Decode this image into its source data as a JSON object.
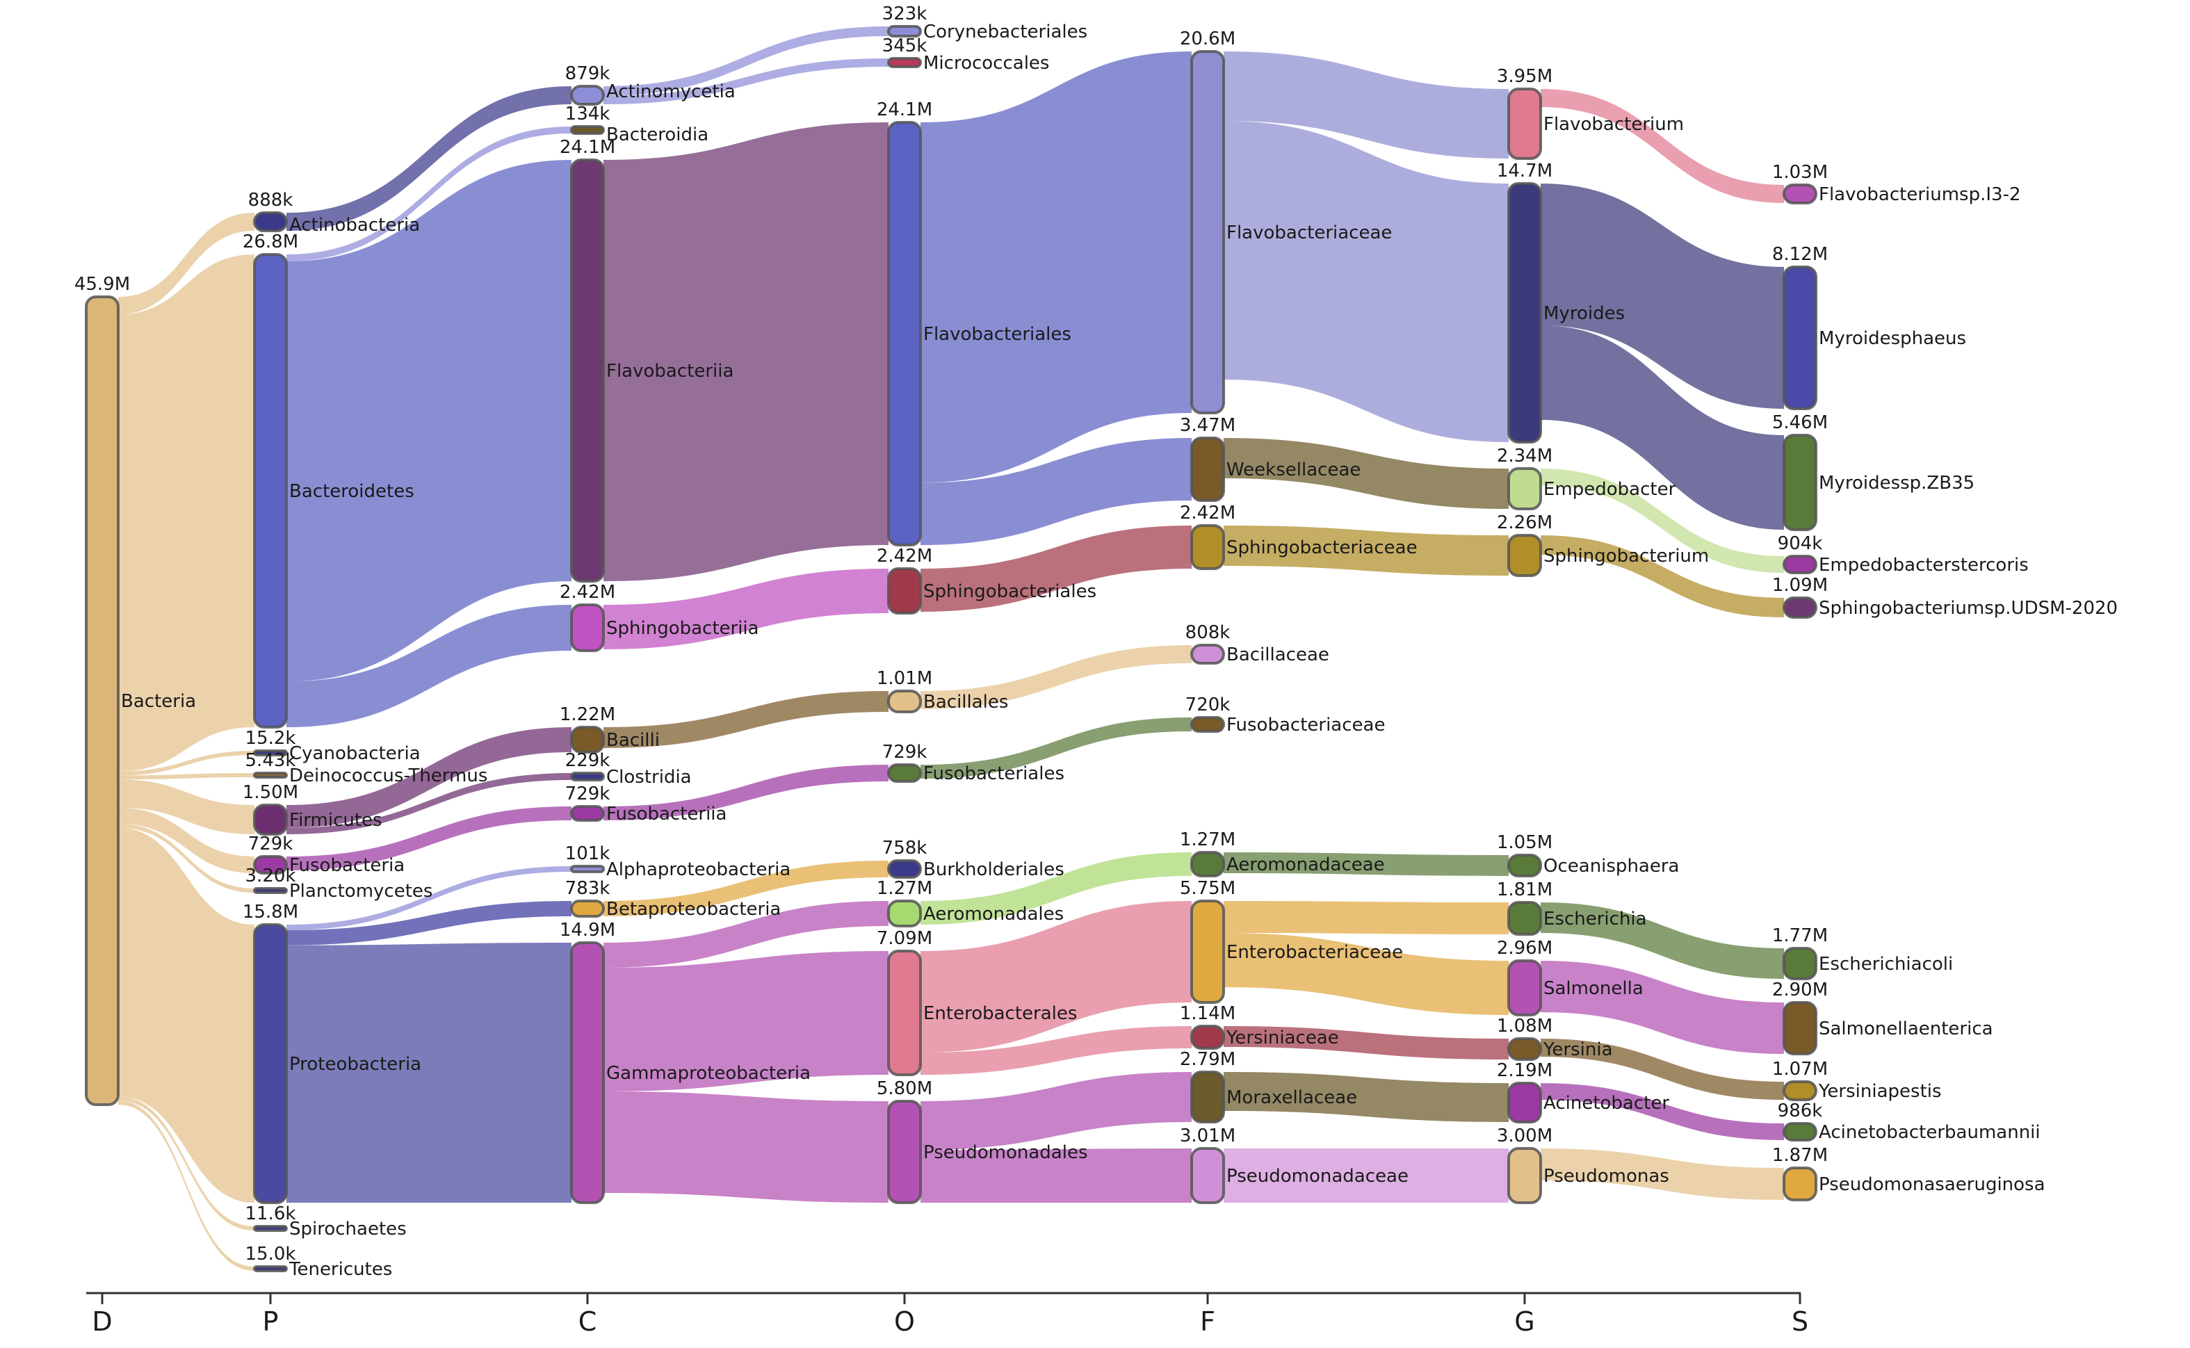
{
  "ranks": [
    {
      "id": "D",
      "label": "D"
    },
    {
      "id": "P",
      "label": "P"
    },
    {
      "id": "C",
      "label": "C"
    },
    {
      "id": "O",
      "label": "O"
    },
    {
      "id": "F",
      "label": "F"
    },
    {
      "id": "G",
      "label": "G"
    },
    {
      "id": "S",
      "label": "S"
    }
  ],
  "nodes": [
    {
      "id": "bacteria",
      "name": "Bacteria",
      "value_label": "45.9M",
      "rank": "D",
      "color": "#dbb678"
    },
    {
      "id": "actinobacteria",
      "name": "Actinobacteria",
      "value_label": "888k",
      "rank": "P",
      "color": "#3b3a8a"
    },
    {
      "id": "bacteroidetes",
      "name": "Bacteroidetes",
      "value_label": "26.8M",
      "rank": "P",
      "color": "#5b62c2"
    },
    {
      "id": "cyanobacteria",
      "name": "Cyanobacteria",
      "value_label": "15.2k",
      "rank": "P",
      "color": "#3b3a8a"
    },
    {
      "id": "deinococcus",
      "name": "Deinococcus-Thermus",
      "value_label": "5.43k",
      "rank": "P",
      "color": "#8a6a3a"
    },
    {
      "id": "firmicutes",
      "name": "Firmicutes",
      "value_label": "1.50M",
      "rank": "P",
      "color": "#6b2e6e"
    },
    {
      "id": "fusobacteria_p",
      "name": "Fusobacteria",
      "value_label": "729k",
      "rank": "P",
      "color": "#9b3aa2"
    },
    {
      "id": "planctomycetes",
      "name": "Planctomycetes",
      "value_label": "3.20k",
      "rank": "P",
      "color": "#3b3a8a"
    },
    {
      "id": "proteobacteria",
      "name": "Proteobacteria",
      "value_label": "15.8M",
      "rank": "P",
      "color": "#4a4aa0"
    },
    {
      "id": "spirochaetes",
      "name": "Spirochaetes",
      "value_label": "11.6k",
      "rank": "P",
      "color": "#3b3a8a"
    },
    {
      "id": "tenericutes",
      "name": "Tenericutes",
      "value_label": "15.0k",
      "rank": "P",
      "color": "#3b3a8a"
    },
    {
      "id": "actinomycetia",
      "name": "Actinomycetia",
      "value_label": "879k",
      "rank": "C",
      "color": "#8e8ed8"
    },
    {
      "id": "bacteroidia",
      "name": "Bacteroidia",
      "value_label": "134k",
      "rank": "C",
      "color": "#6b5a2a"
    },
    {
      "id": "flavobacteriia",
      "name": "Flavobacteriia",
      "value_label": "24.1M",
      "rank": "C",
      "color": "#6e3872"
    },
    {
      "id": "sphingobacteriia",
      "name": "Sphingobacteriia",
      "value_label": "2.42M",
      "rank": "C",
      "color": "#c152c1"
    },
    {
      "id": "bacilli",
      "name": "Bacilli",
      "value_label": "1.22M",
      "rank": "C",
      "color": "#7a5a28"
    },
    {
      "id": "clostridia",
      "name": "Clostridia",
      "value_label": "229k",
      "rank": "C",
      "color": "#3b3a8a"
    },
    {
      "id": "fusobacteriia",
      "name": "Fusobacteriia",
      "value_label": "729k",
      "rank": "C",
      "color": "#9b3aa2"
    },
    {
      "id": "alphaproteobacteria",
      "name": "Alphaproteobacteria",
      "value_label": "101k",
      "rank": "C",
      "color": "#8e8ed8"
    },
    {
      "id": "betaproteobacteria",
      "name": "Betaproteobacteria",
      "value_label": "783k",
      "rank": "C",
      "color": "#e0a840"
    },
    {
      "id": "gammaproteobacteria",
      "name": "Gammaproteobacteria",
      "value_label": "14.9M",
      "rank": "C",
      "color": "#b352b3"
    },
    {
      "id": "corynebacteriales",
      "name": "Corynebacteriales",
      "value_label": "323k",
      "rank": "O",
      "color": "#8e8ed8"
    },
    {
      "id": "micrococcales",
      "name": "Micrococcales",
      "value_label": "345k",
      "rank": "O",
      "color": "#b83a5a"
    },
    {
      "id": "flavobacteriales",
      "name": "Flavobacteriales",
      "value_label": "24.1M",
      "rank": "O",
      "color": "#5b62c2"
    },
    {
      "id": "sphingobacteriales",
      "name": "Sphingobacteriales",
      "value_label": "2.42M",
      "rank": "O",
      "color": "#a03a4a"
    },
    {
      "id": "bacillales",
      "name": "Bacillales",
      "value_label": "1.01M",
      "rank": "O",
      "color": "#e3c08a"
    },
    {
      "id": "fusobacteriales",
      "name": "Fusobacteriales",
      "value_label": "729k",
      "rank": "O",
      "color": "#5a7a3a"
    },
    {
      "id": "burkholderiales",
      "name": "Burkholderiales",
      "value_label": "758k",
      "rank": "O",
      "color": "#3b3a8a"
    },
    {
      "id": "aeromonadales",
      "name": "Aeromonadales",
      "value_label": "1.27M",
      "rank": "O",
      "color": "#a8d870"
    },
    {
      "id": "enterobacterales",
      "name": "Enterobacterales",
      "value_label": "7.09M",
      "rank": "O",
      "color": "#e07a90"
    },
    {
      "id": "pseudomonadales",
      "name": "Pseudomonadales",
      "value_label": "5.80M",
      "rank": "O",
      "color": "#b352b3"
    },
    {
      "id": "flavobacteriaceae",
      "name": "Flavobacteriaceae",
      "value_label": "20.6M",
      "rank": "F",
      "color": "#8e8ed0"
    },
    {
      "id": "weeksellaceae",
      "name": "Weeksellaceae",
      "value_label": "3.47M",
      "rank": "F",
      "color": "#7a5a28"
    },
    {
      "id": "sphingobacteriaceae",
      "name": "Sphingobacteriaceae",
      "value_label": "2.42M",
      "rank": "F",
      "color": "#b08e28"
    },
    {
      "id": "bacillaceae",
      "name": "Bacillaceae",
      "value_label": "808k",
      "rank": "F",
      "color": "#d090d8"
    },
    {
      "id": "fusobacteriaceae",
      "name": "Fusobacteriaceae",
      "value_label": "720k",
      "rank": "F",
      "color": "#7a5a28"
    },
    {
      "id": "aeromonadaceae",
      "name": "Aeromonadaceae",
      "value_label": "1.27M",
      "rank": "F",
      "color": "#5a7a3a"
    },
    {
      "id": "enterobacteriaceae",
      "name": "Enterobacteriaceae",
      "value_label": "5.75M",
      "rank": "F",
      "color": "#e0a840"
    },
    {
      "id": "yersiniaceae",
      "name": "Yersiniaceae",
      "value_label": "1.14M",
      "rank": "F",
      "color": "#a03a4a"
    },
    {
      "id": "moraxellaceae",
      "name": "Moraxellaceae",
      "value_label": "2.79M",
      "rank": "F",
      "color": "#6b5a2a"
    },
    {
      "id": "pseudomonadaceae",
      "name": "Pseudomonadaceae",
      "value_label": "3.01M",
      "rank": "F",
      "color": "#d090d8"
    },
    {
      "id": "flavobacterium",
      "name": "Flavobacterium",
      "value_label": "3.95M",
      "rank": "G",
      "color": "#e07a90"
    },
    {
      "id": "myroides",
      "name": "Myroides",
      "value_label": "14.7M",
      "rank": "G",
      "color": "#3b3a7a"
    },
    {
      "id": "empedobacter",
      "name": "Empedobacter",
      "value_label": "2.34M",
      "rank": "G",
      "color": "#c0dc90"
    },
    {
      "id": "sphingobacterium",
      "name": "Sphingobacterium",
      "value_label": "2.26M",
      "rank": "G",
      "color": "#b08e28"
    },
    {
      "id": "oceanisphaera",
      "name": "Oceanisphaera",
      "value_label": "1.05M",
      "rank": "G",
      "color": "#5a7a3a"
    },
    {
      "id": "escherichia",
      "name": "Escherichia",
      "value_label": "1.81M",
      "rank": "G",
      "color": "#5a7a3a"
    },
    {
      "id": "salmonella",
      "name": "Salmonella",
      "value_label": "2.96M",
      "rank": "G",
      "color": "#b352b3"
    },
    {
      "id": "yersinia",
      "name": "Yersinia",
      "value_label": "1.08M",
      "rank": "G",
      "color": "#7a5a28"
    },
    {
      "id": "acinetobacter",
      "name": "Acinetobacter",
      "value_label": "2.19M",
      "rank": "G",
      "color": "#9b3aa2"
    },
    {
      "id": "pseudomonas",
      "name": "Pseudomonas",
      "value_label": "3.00M",
      "rank": "G",
      "color": "#e3c08a"
    },
    {
      "id": "flavobacterium_sp",
      "name": "Flavobacteriumsp.I3-2",
      "value_label": "1.03M",
      "rank": "S",
      "color": "#b352b3"
    },
    {
      "id": "myroides_phaeus",
      "name": "Myroidesphaeus",
      "value_label": "8.12M",
      "rank": "S",
      "color": "#4a4aa8"
    },
    {
      "id": "myroides_zb35",
      "name": "Myroidessp.ZB35",
      "value_label": "5.46M",
      "rank": "S",
      "color": "#5a7a3a"
    },
    {
      "id": "empedobacter_st",
      "name": "Empedobacterstercoris",
      "value_label": "904k",
      "rank": "S",
      "color": "#9b3aa2"
    },
    {
      "id": "sphingobacterium_sp",
      "name": "Sphingobacteriumsp.UDSM-2020",
      "value_label": "1.09M",
      "rank": "S",
      "color": "#6e3872"
    },
    {
      "id": "e_coli",
      "name": "Escherichiacoli",
      "value_label": "1.77M",
      "rank": "S",
      "color": "#5a7a3a"
    },
    {
      "id": "s_enterica",
      "name": "Salmonellaenterica",
      "value_label": "2.90M",
      "rank": "S",
      "color": "#7a5a28"
    },
    {
      "id": "y_pestis",
      "name": "Yersiniapestis",
      "value_label": "1.07M",
      "rank": "S",
      "color": "#b08e28"
    },
    {
      "id": "a_baumannii",
      "name": "Acinetobacterbaumannii",
      "value_label": "986k",
      "rank": "S",
      "color": "#5a7a3a"
    },
    {
      "id": "p_aeruginosa",
      "name": "Pseudomonasaeruginosa",
      "value_label": "1.87M",
      "rank": "S",
      "color": "#e0a840"
    }
  ],
  "links": [
    {
      "source": "bacteria",
      "target": "actinobacteria",
      "color": "#e3c08a"
    },
    {
      "source": "bacteria",
      "target": "bacteroidetes",
      "color": "#e3c08a"
    },
    {
      "source": "bacteria",
      "target": "cyanobacteria",
      "color": "#e3c08a"
    },
    {
      "source": "bacteria",
      "target": "deinococcus",
      "color": "#e3c08a"
    },
    {
      "source": "bacteria",
      "target": "firmicutes",
      "color": "#e3c08a"
    },
    {
      "source": "bacteria",
      "target": "fusobacteria_p",
      "color": "#e3c08a"
    },
    {
      "source": "bacteria",
      "target": "planctomycetes",
      "color": "#e3c08a"
    },
    {
      "source": "bacteria",
      "target": "proteobacteria",
      "color": "#e3c08a"
    },
    {
      "source": "bacteria",
      "target": "spirochaetes",
      "color": "#e3c08a"
    },
    {
      "source": "bacteria",
      "target": "tenericutes",
      "color": "#e3c08a"
    },
    {
      "source": "actinobacteria",
      "target": "actinomycetia",
      "color": "#3b3a8a"
    },
    {
      "source": "bacteroidetes",
      "target": "bacteroidia",
      "color": "#8e8ed8"
    },
    {
      "source": "bacteroidetes",
      "target": "flavobacteriia",
      "color": "#5b62c2"
    },
    {
      "source": "bacteroidetes",
      "target": "sphingobacteriia",
      "color": "#5b62c2"
    },
    {
      "source": "firmicutes",
      "target": "bacilli",
      "color": "#6b2e6e"
    },
    {
      "source": "firmicutes",
      "target": "clostridia",
      "color": "#6b2e6e"
    },
    {
      "source": "fusobacteria_p",
      "target": "fusobacteriia",
      "color": "#9b3aa2"
    },
    {
      "source": "proteobacteria",
      "target": "alphaproteobacteria",
      "color": "#8e8ed8"
    },
    {
      "source": "proteobacteria",
      "target": "betaproteobacteria",
      "color": "#3b3aa0"
    },
    {
      "source": "proteobacteria",
      "target": "gammaproteobacteria",
      "color": "#4a4aa0"
    },
    {
      "source": "actinomycetia",
      "target": "corynebacteriales",
      "color": "#8e8ed8"
    },
    {
      "source": "actinomycetia",
      "target": "micrococcales",
      "color": "#8e8ed8"
    },
    {
      "source": "flavobacteriia",
      "target": "flavobacteriales",
      "color": "#6e3872"
    },
    {
      "source": "sphingobacteriia",
      "target": "sphingobacteriales",
      "color": "#c152c1"
    },
    {
      "source": "bacilli",
      "target": "bacillales",
      "color": "#7a5a28"
    },
    {
      "source": "fusobacteriia",
      "target": "fusobacteriales",
      "color": "#9b3aa2"
    },
    {
      "source": "betaproteobacteria",
      "target": "burkholderiales",
      "color": "#e0a840"
    },
    {
      "source": "gammaproteobacteria",
      "target": "aeromonadales",
      "color": "#b352b3"
    },
    {
      "source": "gammaproteobacteria",
      "target": "enterobacterales",
      "color": "#b352b3"
    },
    {
      "source": "gammaproteobacteria",
      "target": "pseudomonadales",
      "color": "#b352b3"
    },
    {
      "source": "flavobacteriales",
      "target": "flavobacteriaceae",
      "color": "#5b62c2"
    },
    {
      "source": "flavobacteriales",
      "target": "weeksellaceae",
      "color": "#5b62c2"
    },
    {
      "source": "sphingobacteriales",
      "target": "sphingobacteriaceae",
      "color": "#a03a4a"
    },
    {
      "source": "bacillales",
      "target": "bacillaceae",
      "color": "#e3c08a"
    },
    {
      "source": "fusobacteriales",
      "target": "fusobacteriaceae",
      "color": "#5a7a3a"
    },
    {
      "source": "aeromonadales",
      "target": "aeromonadaceae",
      "color": "#a8d870"
    },
    {
      "source": "enterobacterales",
      "target": "enterobacteriaceae",
      "color": "#e07a90"
    },
    {
      "source": "enterobacterales",
      "target": "yersiniaceae",
      "color": "#e07a90"
    },
    {
      "source": "pseudomonadales",
      "target": "moraxellaceae",
      "color": "#b352b3"
    },
    {
      "source": "pseudomonadales",
      "target": "pseudomonadaceae",
      "color": "#b352b3"
    },
    {
      "source": "flavobacteriaceae",
      "target": "flavobacterium",
      "color": "#8e8ed0"
    },
    {
      "source": "flavobacteriaceae",
      "target": "myroides",
      "color": "#8e8ed0"
    },
    {
      "source": "weeksellaceae",
      "target": "empedobacter",
      "color": "#6b5a2a"
    },
    {
      "source": "sphingobacteriaceae",
      "target": "sphingobacterium",
      "color": "#b08e28"
    },
    {
      "source": "aeromonadaceae",
      "target": "oceanisphaera",
      "color": "#5a7a3a"
    },
    {
      "source": "enterobacteriaceae",
      "target": "escherichia",
      "color": "#e0a840"
    },
    {
      "source": "enterobacteriaceae",
      "target": "salmonella",
      "color": "#e0a840"
    },
    {
      "source": "yersiniaceae",
      "target": "yersinia",
      "color": "#a03a4a"
    },
    {
      "source": "moraxellaceae",
      "target": "acinetobacter",
      "color": "#6b5a2a"
    },
    {
      "source": "pseudomonadaceae",
      "target": "pseudomonas",
      "color": "#d090d8"
    },
    {
      "source": "flavobacterium",
      "target": "flavobacterium_sp",
      "color": "#e07a90"
    },
    {
      "source": "myroides",
      "target": "myroides_phaeus",
      "color": "#3b3a7a"
    },
    {
      "source": "myroides",
      "target": "myroides_zb35",
      "color": "#3b3a7a"
    },
    {
      "source": "empedobacter",
      "target": "empedobacter_st",
      "color": "#c0dc90"
    },
    {
      "source": "sphingobacterium",
      "target": "sphingobacterium_sp",
      "color": "#b08e28"
    },
    {
      "source": "escherichia",
      "target": "e_coli",
      "color": "#5a7a3a"
    },
    {
      "source": "salmonella",
      "target": "s_enterica",
      "color": "#b352b3"
    },
    {
      "source": "yersinia",
      "target": "y_pestis",
      "color": "#7a5a28"
    },
    {
      "source": "acinetobacter",
      "target": "a_baumannii",
      "color": "#9b3aa2"
    },
    {
      "source": "pseudomonas",
      "target": "p_aeruginosa",
      "color": "#e3c08a"
    }
  ]
}
